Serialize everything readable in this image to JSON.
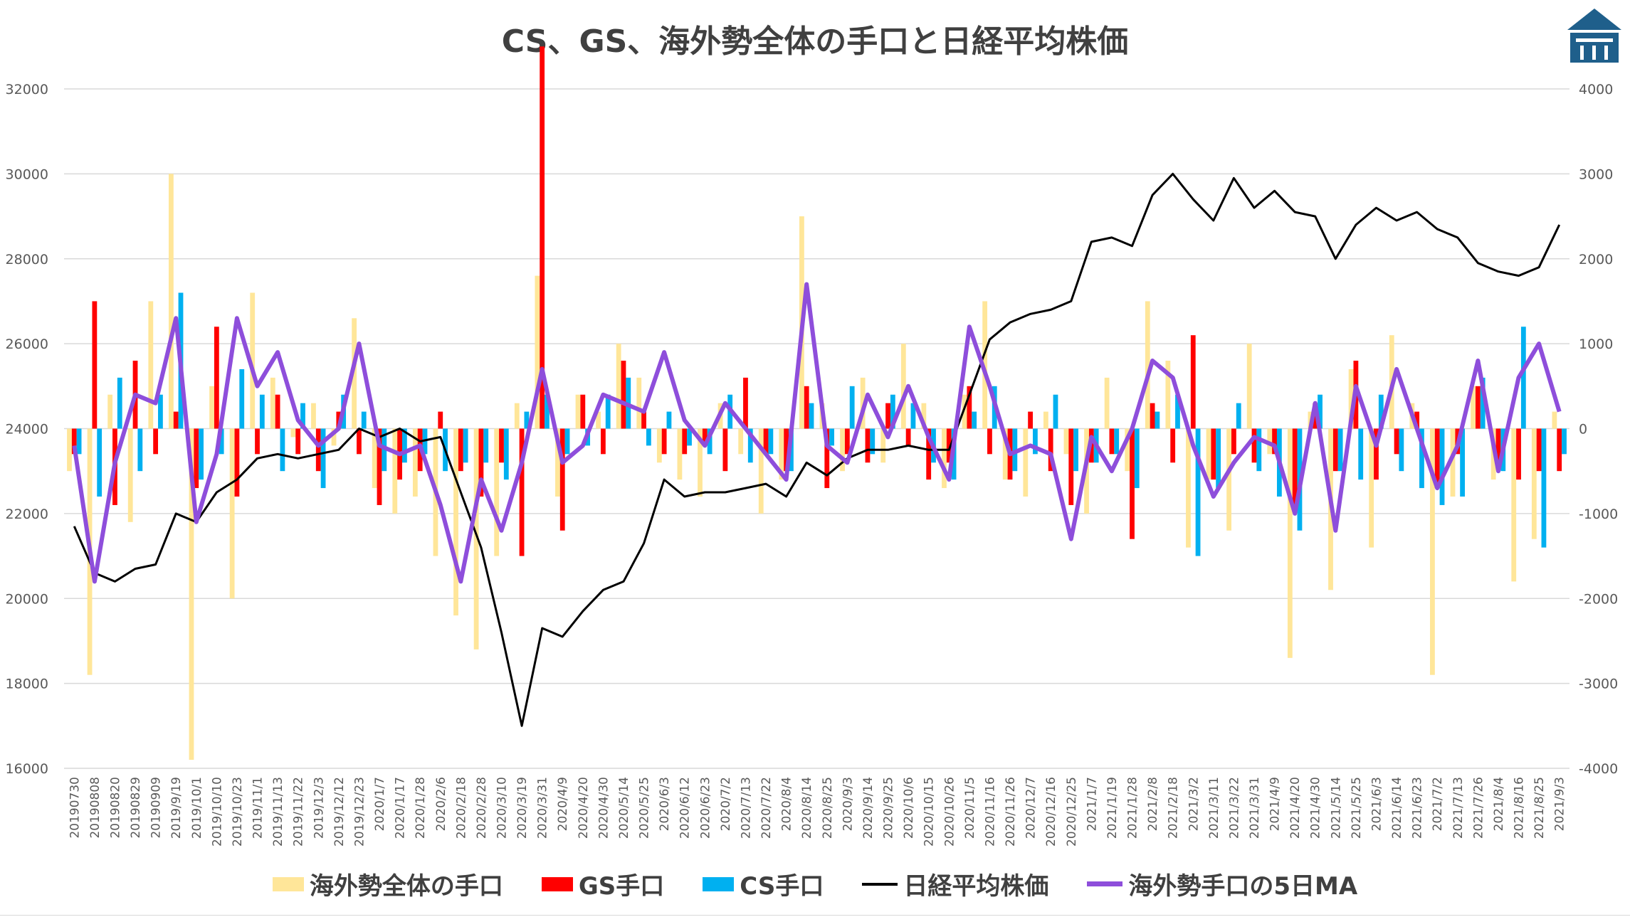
{
  "chart_data": {
    "type": "bar",
    "title": "CS、GS、海外勢全体の手口と日経平均株価",
    "y_left": {
      "range": [
        16000,
        32000
      ],
      "ticks": [
        16000,
        18000,
        20000,
        22000,
        24000,
        26000,
        28000,
        30000,
        32000
      ]
    },
    "y_right": {
      "range": [
        -4000,
        4000
      ],
      "ticks": [
        -4000,
        -3000,
        -2000,
        -1000,
        0,
        1000,
        2000,
        3000,
        4000
      ]
    },
    "categories": [
      "20190730",
      "20190808",
      "20190820",
      "20190829",
      "20190909",
      "2019/9/19",
      "2019/10/1",
      "2019/10/10",
      "2019/10/23",
      "2019/11/1",
      "2019/11/13",
      "2019/11/22",
      "2019/12/3",
      "2019/12/12",
      "2019/12/23",
      "2020/1/7",
      "2020/1/17",
      "2020/1/28",
      "2020/2/6",
      "2020/2/18",
      "2020/2/28",
      "2020/3/10",
      "2020/3/19",
      "2020/3/31",
      "2020/4/9",
      "2020/4/20",
      "2020/4/30",
      "2020/5/14",
      "2020/5/25",
      "2020/6/3",
      "2020/6/12",
      "2020/6/23",
      "2020/7/2",
      "2020/7/13",
      "2020/7/22",
      "2020/8/4",
      "2020/8/14",
      "2020/8/25",
      "2020/9/3",
      "2020/9/14",
      "2020/9/25",
      "2020/10/6",
      "2020/10/15",
      "2020/10/26",
      "2020/11/5",
      "2020/11/16",
      "2020/11/26",
      "2020/12/7",
      "2020/12/16",
      "2020/12/25",
      "2021/1/7",
      "2021/1/19",
      "2021/1/28",
      "2021/2/8",
      "2021/2/18",
      "2021/3/2",
      "2021/3/11",
      "2021/3/22",
      "2021/3/31",
      "2021/4/9",
      "2021/4/20",
      "2021/4/30",
      "2021/5/14",
      "2021/5/25",
      "2021/6/3",
      "2021/6/14",
      "2021/6/23",
      "2021/7/2",
      "2021/7/13",
      "2021/7/26",
      "2021/8/4",
      "2021/8/16",
      "2021/8/25",
      "2021/9/3"
    ],
    "series": [
      {
        "name": "海外勢全体の手口",
        "kind": "bar",
        "axis": "right",
        "color": "#FFE699",
        "values": [
          -500,
          -2900,
          400,
          -1100,
          1500,
          3000,
          -3900,
          500,
          -2000,
          1600,
          600,
          -100,
          300,
          -200,
          1300,
          -700,
          -1000,
          -800,
          -1500,
          -2200,
          -2600,
          -1500,
          300,
          1800,
          -800,
          400,
          200,
          1000,
          600,
          -400,
          -600,
          -800,
          300,
          -300,
          -1000,
          -600,
          2500,
          300,
          -500,
          600,
          -400,
          1000,
          300,
          -700,
          400,
          1500,
          -600,
          -800,
          200,
          -300,
          -1000,
          600,
          -500,
          1500,
          800,
          -1400,
          -600,
          -1200,
          1000,
          -300,
          -2700,
          200,
          -1900,
          700,
          -1400,
          1100,
          300,
          -2900,
          -800,
          500,
          -600,
          -1800,
          -1300,
          200
        ]
      },
      {
        "name": "GS手口",
        "kind": "bar",
        "axis": "right",
        "color": "#FF0000",
        "values": [
          -300,
          1500,
          -900,
          800,
          -300,
          200,
          -700,
          1200,
          -800,
          -300,
          400,
          -300,
          -500,
          200,
          -300,
          -900,
          -600,
          -500,
          200,
          -500,
          -800,
          -400,
          -1500,
          4500,
          -1200,
          400,
          -300,
          800,
          200,
          -300,
          -300,
          -200,
          -500,
          600,
          -300,
          -500,
          500,
          -700,
          -300,
          -400,
          300,
          -200,
          -600,
          -400,
          500,
          -300,
          -600,
          200,
          -500,
          -900,
          -400,
          -300,
          -1300,
          300,
          -400,
          1100,
          -600,
          -300,
          -400,
          -300,
          -900,
          300,
          -500,
          800,
          -600,
          -300,
          200,
          -700,
          -300,
          500,
          -400,
          -600,
          -500,
          -500
        ]
      },
      {
        "name": "CS手口",
        "kind": "bar",
        "axis": "right",
        "color": "#00B0F0",
        "values": [
          -300,
          -800,
          600,
          -500,
          400,
          1600,
          -600,
          -300,
          700,
          400,
          -500,
          300,
          -700,
          400,
          200,
          -500,
          -400,
          -300,
          -500,
          -400,
          -400,
          -600,
          200,
          400,
          -300,
          -200,
          400,
          600,
          -200,
          200,
          -200,
          -300,
          400,
          -400,
          -300,
          -500,
          300,
          -200,
          500,
          -300,
          400,
          300,
          -400,
          -600,
          200,
          500,
          -500,
          -300,
          400,
          -500,
          -400,
          -300,
          -700,
          200,
          400,
          -1500,
          -700,
          300,
          -500,
          -800,
          -1200,
          400,
          -500,
          -600,
          400,
          -500,
          -700,
          -900,
          -800,
          600,
          -500,
          1200,
          -1400,
          -300
        ]
      },
      {
        "name": "日経平均株価",
        "kind": "line",
        "axis": "left",
        "color": "#000000",
        "values": [
          21700,
          20600,
          20400,
          20700,
          20800,
          22000,
          21800,
          22500,
          22800,
          23300,
          23400,
          23300,
          23400,
          23500,
          24000,
          23800,
          24000,
          23700,
          23800,
          22500,
          21200,
          19200,
          17000,
          19300,
          19100,
          19700,
          20200,
          20400,
          21300,
          22800,
          22400,
          22500,
          22500,
          22600,
          22700,
          22400,
          23200,
          22900,
          23300,
          23500,
          23500,
          23600,
          23500,
          23500,
          24800,
          26100,
          26500,
          26700,
          26800,
          27000,
          28400,
          28500,
          28300,
          29500,
          30000,
          29400,
          28900,
          29900,
          29200,
          29600,
          29100,
          29000,
          28000,
          28800,
          29200,
          28900,
          29100,
          28700,
          28500,
          27900,
          27700,
          27600,
          27800,
          28800
        ]
      },
      {
        "name": "海外勢手口の5日MA",
        "kind": "line",
        "axis": "right",
        "color": "#8E4EDB",
        "values": [
          -200,
          -1800,
          -400,
          400,
          300,
          1300,
          -1100,
          -300,
          1300,
          500,
          900,
          100,
          -200,
          0,
          1000,
          -200,
          -300,
          -200,
          -900,
          -1800,
          -600,
          -1200,
          -400,
          700,
          -400,
          -200,
          400,
          300,
          200,
          900,
          100,
          -200,
          300,
          0,
          -300,
          -600,
          1700,
          -200,
          -400,
          400,
          -100,
          500,
          -100,
          -600,
          1200,
          500,
          -300,
          -200,
          -300,
          -1300,
          -100,
          -500,
          0,
          800,
          600,
          -200,
          -800,
          -400,
          -100,
          -200,
          -1000,
          300,
          -1200,
          500,
          -200,
          700,
          0,
          -700,
          -200,
          800,
          -500,
          600,
          1000,
          200
        ]
      }
    ]
  },
  "legend": {
    "items": [
      {
        "label": "海外勢全体の手口",
        "color": "#FFE699",
        "shape": "box"
      },
      {
        "label": "GS手口",
        "color": "#FF0000",
        "shape": "box"
      },
      {
        "label": "CS手口",
        "color": "#00B0F0",
        "shape": "box"
      },
      {
        "label": "日経平均株価",
        "color": "#000000",
        "shape": "line"
      },
      {
        "label": "海外勢手口の5日MA",
        "color": "#8E4EDB",
        "shape": "line"
      }
    ]
  },
  "logo": {
    "icon": "building-logo-icon",
    "color": "#1F5F8B"
  }
}
